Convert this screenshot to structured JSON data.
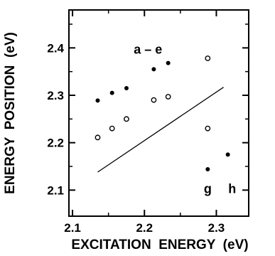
{
  "chart_data": {
    "type": "scatter",
    "title": "",
    "xlabel": "EXCITATION  ENERGY  (eV)",
    "ylabel": "ENERGY  POSITION  (eV)",
    "xlim": [
      2.095,
      2.345
    ],
    "ylim": [
      2.045,
      2.48
    ],
    "xticks": [
      2.1,
      2.2,
      2.3
    ],
    "xtick_labels": [
      "2.1",
      "2.2",
      "2.3"
    ],
    "xticks_minor": [
      2.15,
      2.25
    ],
    "yticks": [
      2.1,
      2.2,
      2.3,
      2.4
    ],
    "ytick_labels": [
      "2.1",
      "2.2",
      "2.3",
      "2.4"
    ],
    "yticks_minor": [
      2.15,
      2.25,
      2.35,
      2.45
    ],
    "grid": false,
    "series": [
      {
        "marker": "filled-circle",
        "color": "#000000",
        "points": [
          [
            2.135,
            2.289
          ],
          [
            2.155,
            2.305
          ],
          [
            2.175,
            2.315
          ],
          [
            2.213,
            2.355
          ],
          [
            2.233,
            2.368
          ],
          [
            2.288,
            2.144
          ],
          [
            2.316,
            2.175
          ]
        ]
      },
      {
        "marker": "open-circle",
        "color": "#000000",
        "points": [
          [
            2.135,
            2.211
          ],
          [
            2.155,
            2.23
          ],
          [
            2.175,
            2.25
          ],
          [
            2.213,
            2.29
          ],
          [
            2.233,
            2.297
          ],
          [
            2.288,
            2.378
          ],
          [
            2.288,
            2.23
          ]
        ]
      }
    ],
    "line": {
      "x": [
        2.135,
        2.31
      ],
      "y": [
        2.138,
        2.317
      ]
    },
    "annotations": [
      {
        "text": "a – e",
        "x": 2.205,
        "y": 2.388
      },
      {
        "text": "g",
        "x": 2.288,
        "y": 2.094
      },
      {
        "text": "h",
        "x": 2.322,
        "y": 2.094
      }
    ]
  }
}
